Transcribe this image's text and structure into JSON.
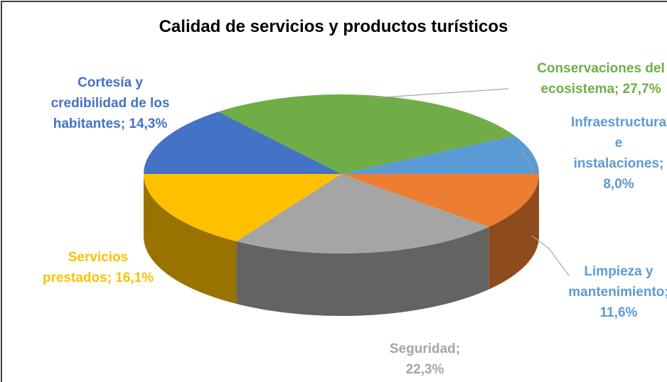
{
  "chart_data": {
    "type": "pie",
    "title": "Calidad de servicios y productos turísticos",
    "categories": [
      "Conservaciones del ecosistema",
      "Infraestructura e instalaciones",
      "Limpieza y mantenimiento",
      "Seguridad",
      "Servicios prestados",
      "Cortesía y credibilidad de los habitantes"
    ],
    "values": [
      27.7,
      8.0,
      11.6,
      22.3,
      16.1,
      14.3
    ],
    "value_labels": [
      "27,7%",
      "8,0%",
      "11,6%",
      "22,3%",
      "16,1%",
      "14,3%"
    ],
    "label_separator": ";",
    "colors": [
      "#70ad47",
      "#5b9bd5",
      "#ed7d31",
      "#a5a5a5",
      "#ffc000",
      "#4472c4"
    ],
    "label_colors": [
      "#70ad47",
      "#5b9bd5",
      "#5b9bd5",
      "#a5a5a5",
      "#ffc000",
      "#4472c4"
    ]
  }
}
